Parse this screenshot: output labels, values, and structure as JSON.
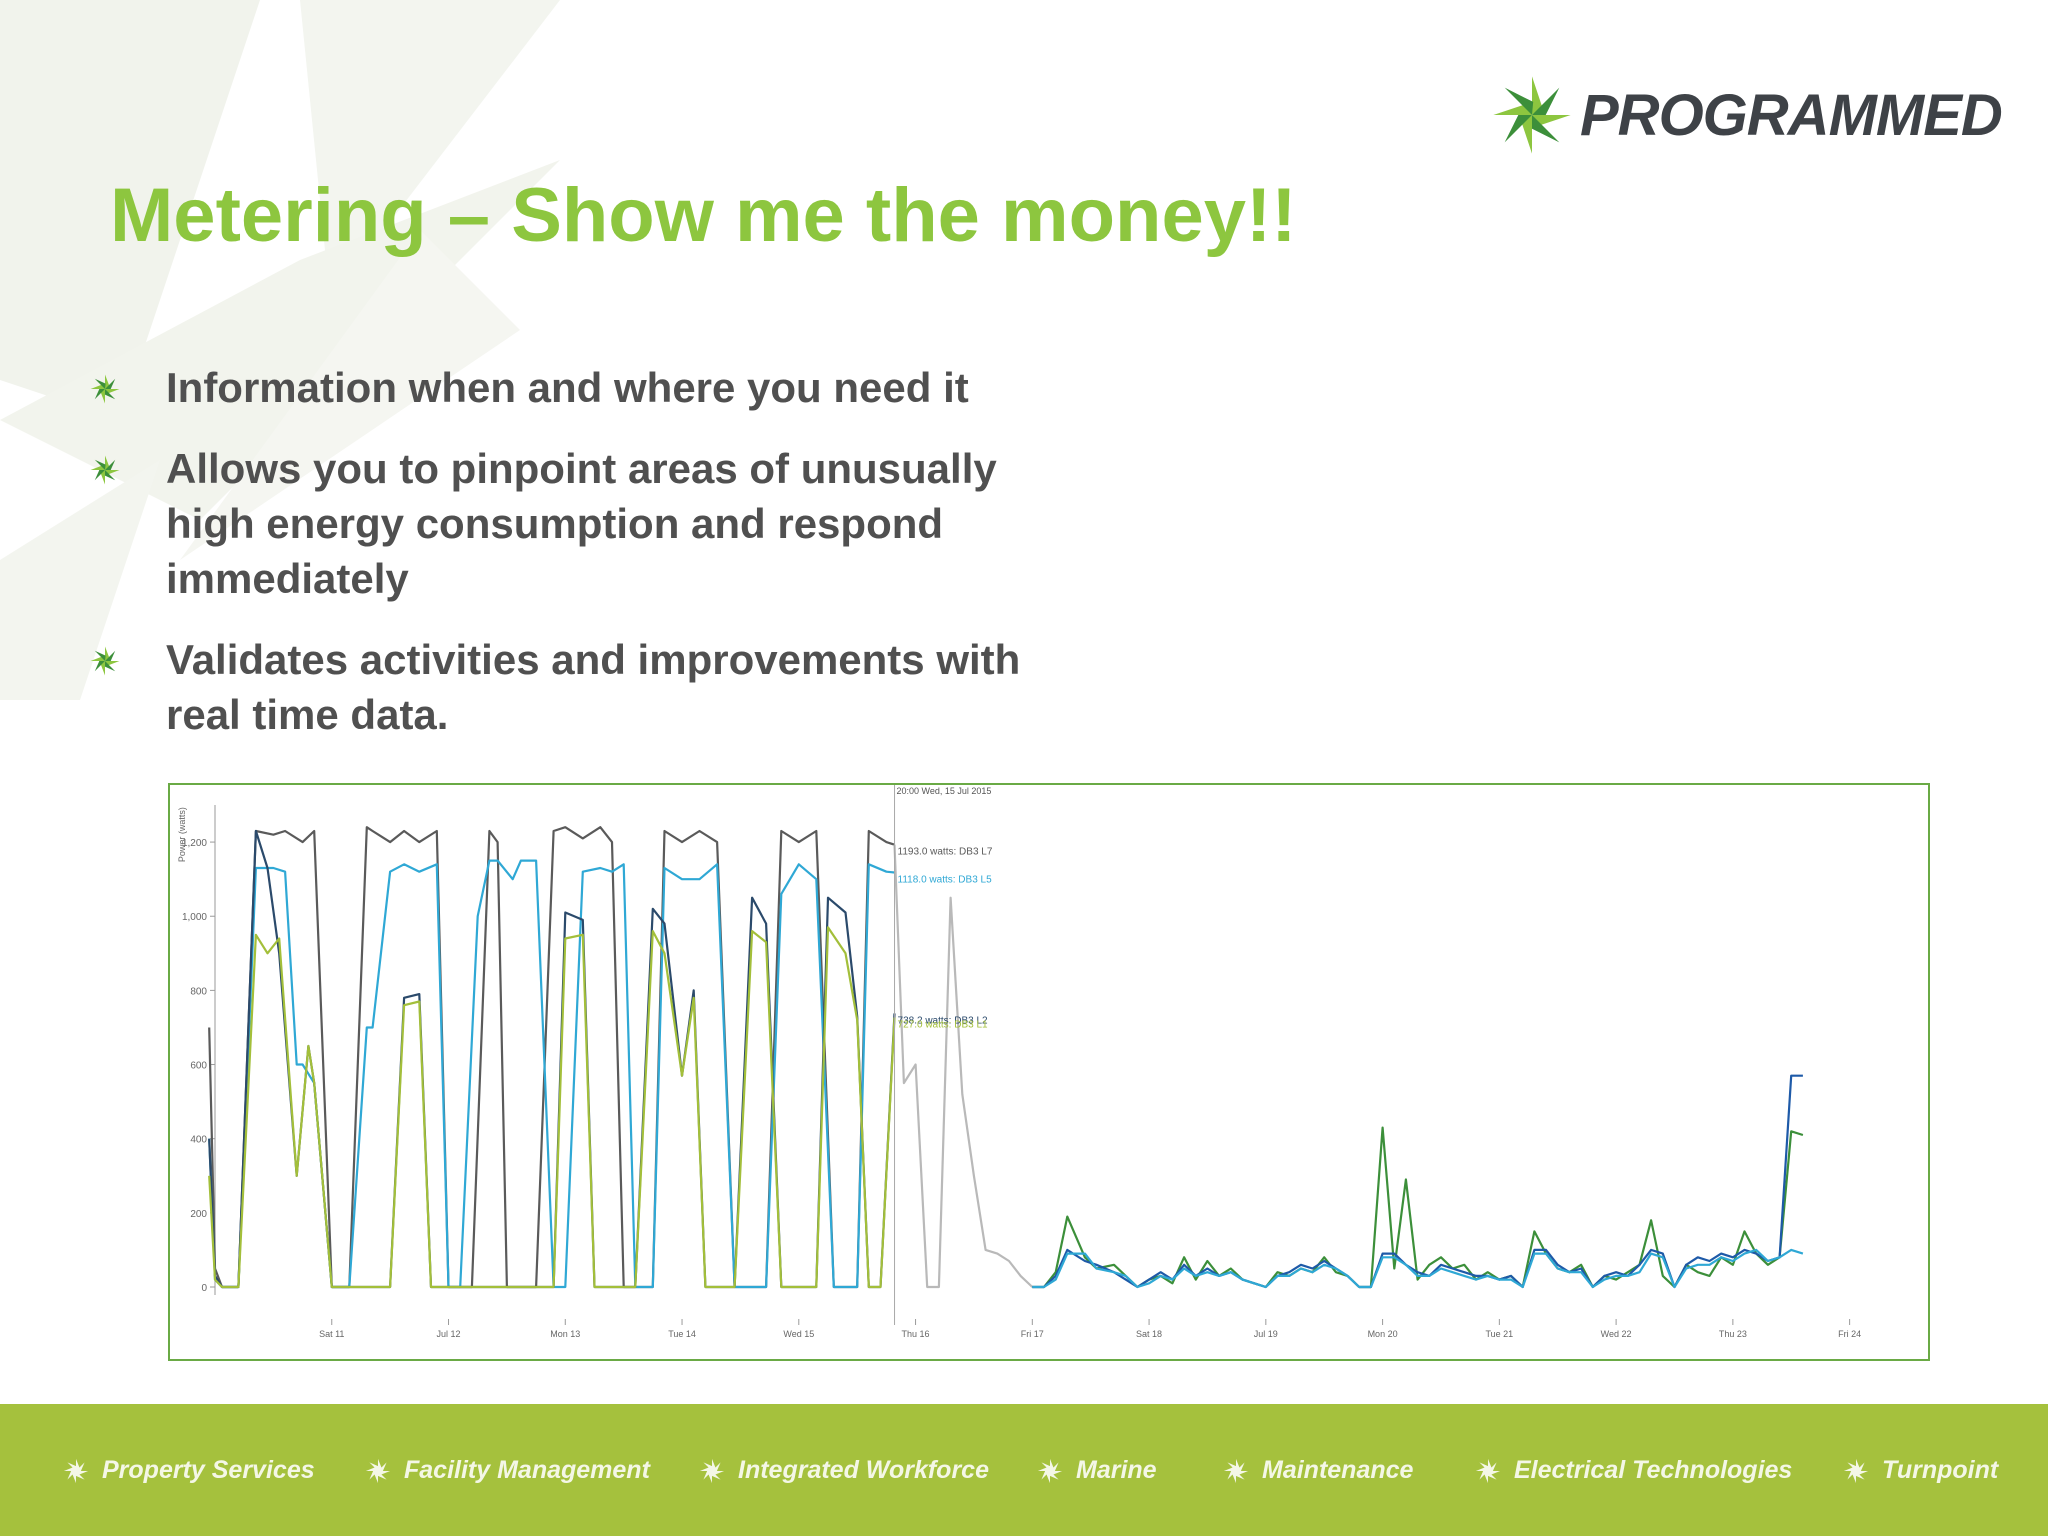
{
  "brand": {
    "name": "PROGRAMMED",
    "green": "#8dc63f",
    "dark_green": "#3c8f3a",
    "footer_green": "#a5c13d"
  },
  "slide": {
    "title": "Metering – Show me the money!!",
    "bullets": [
      "Information when and where you need it",
      "Allows you to pinpoint areas of unusually high energy consumption and respond immediately",
      "Validates activities and improvements with real time data."
    ]
  },
  "footer": {
    "items": [
      "Property Services",
      "Facility Management",
      "Integrated Workforce",
      "Marine",
      "Maintenance",
      "Electrical Technologies",
      "Turnpoint"
    ]
  },
  "chart_data": {
    "type": "line",
    "title": "",
    "xlabel": "",
    "ylabel": "Power (watts)",
    "ylim": [
      0,
      1300
    ],
    "y_ticks": [
      0,
      200,
      400,
      600,
      800,
      1000,
      1200
    ],
    "y_tick_labels": [
      "0",
      "200",
      "400",
      "600",
      "800",
      "1,000",
      "1,200"
    ],
    "xlim": [
      0,
      14.5
    ],
    "x_ticks": [
      1,
      2,
      3,
      4,
      5,
      6,
      7,
      8,
      9,
      10,
      11,
      12,
      13,
      14
    ],
    "x_tick_labels": [
      "Sat 11",
      "Jul 12",
      "Mon 13",
      "Tue 14",
      "Wed 15",
      "Thu 16",
      "Fri 17",
      "Sat 18",
      "Jul 19",
      "Mon 20",
      "Tue 21",
      "Wed 22",
      "Thu 23",
      "Fri 24"
    ],
    "grid": false,
    "tooltip": {
      "x": 5.82,
      "header": "20:00 Wed, 15 Jul 2015",
      "entries": [
        {
          "label": "1193.0 watts: DB3 L7",
          "color": "#5a5a5a",
          "y": 1193
        },
        {
          "label": "1118.0 watts: DB3 L5",
          "color": "#2fa8d5",
          "y": 1118
        },
        {
          "label": "738.2 watts: DB3 L2",
          "color": "#2b4a6b",
          "y": 738
        },
        {
          "label": "727.0 watts: DB3 L1",
          "color": "#a3bf3a",
          "y": 727
        }
      ]
    },
    "series": [
      {
        "color": "#5a5a5a",
        "x": [
          -0.05,
          0.0,
          0.06,
          0.13,
          0.2,
          0.35,
          0.5,
          0.6,
          0.75,
          0.85,
          1.0,
          1.08,
          1.15,
          1.3,
          1.35,
          1.5,
          1.62,
          1.75,
          1.9,
          2.0,
          2.1,
          2.2,
          2.35,
          2.42,
          2.5,
          2.62,
          2.75,
          2.9,
          3.0,
          3.15,
          3.3,
          3.4,
          3.5,
          3.6,
          3.75,
          3.85,
          4.0,
          4.15,
          4.3,
          4.45,
          4.6,
          4.72,
          4.85,
          5.0,
          5.15,
          5.3,
          5.5,
          5.6,
          5.75,
          5.82
        ],
        "y": [
          700,
          50,
          0,
          0,
          0,
          1230,
          1220,
          1230,
          1200,
          1230,
          0,
          0,
          0,
          1240,
          1230,
          1200,
          1230,
          1200,
          1230,
          0,
          0,
          0,
          1230,
          1200,
          0,
          0,
          0,
          1230,
          1240,
          1210,
          1240,
          1200,
          0,
          0,
          0,
          1230,
          1200,
          1230,
          1200,
          0,
          0,
          0,
          1230,
          1200,
          1230,
          0,
          0,
          1230,
          1200,
          1193
        ]
      },
      {
        "color": "#2fa8d5",
        "x": [
          -0.05,
          0.0,
          0.06,
          0.13,
          0.2,
          0.35,
          0.5,
          0.6,
          0.7,
          0.75,
          0.85,
          1.0,
          1.08,
          1.15,
          1.3,
          1.35,
          1.5,
          1.62,
          1.75,
          1.9,
          2.0,
          2.1,
          2.25,
          2.35,
          2.42,
          2.55,
          2.62,
          2.75,
          2.9,
          3.0,
          3.15,
          3.3,
          3.4,
          3.5,
          3.6,
          3.75,
          3.85,
          4.0,
          4.15,
          4.3,
          4.45,
          4.6,
          4.72,
          4.85,
          5.0,
          5.15,
          5.3,
          5.5,
          5.6,
          5.75,
          5.82
        ],
        "y": [
          400,
          20,
          0,
          0,
          0,
          1130,
          1130,
          1120,
          600,
          600,
          550,
          0,
          0,
          0,
          700,
          700,
          1120,
          1140,
          1120,
          1140,
          0,
          0,
          1000,
          1150,
          1150,
          1100,
          1150,
          1150,
          0,
          0,
          1120,
          1130,
          1120,
          1140,
          0,
          0,
          1130,
          1100,
          1100,
          1140,
          0,
          0,
          0,
          1060,
          1140,
          1100,
          0,
          0,
          1140,
          1120,
          1118
        ]
      },
      {
        "color": "#2b4a6b",
        "x": [
          -0.05,
          0.0,
          0.06,
          0.13,
          0.2,
          0.35,
          0.45,
          0.55,
          0.7,
          0.8,
          0.85,
          1.0,
          1.08,
          1.15,
          1.3,
          1.35,
          1.5,
          1.62,
          1.75,
          1.85,
          2.0,
          2.1,
          2.25,
          2.35,
          2.42,
          2.55,
          2.62,
          2.75,
          2.9,
          3.0,
          3.15,
          3.25,
          3.4,
          3.5,
          3.6,
          3.75,
          3.85,
          4.0,
          4.1,
          4.2,
          4.35,
          4.45,
          4.6,
          4.72,
          4.85,
          5.0,
          5.15,
          5.25,
          5.4,
          5.5,
          5.6,
          5.7,
          5.82
        ],
        "y": [
          400,
          30,
          0,
          0,
          0,
          1230,
          1130,
          900,
          300,
          650,
          550,
          0,
          0,
          0,
          0,
          0,
          0,
          780,
          790,
          0,
          0,
          0,
          0,
          0,
          0,
          0,
          0,
          0,
          0,
          1010,
          990,
          0,
          0,
          0,
          0,
          1020,
          980,
          570,
          800,
          0,
          0,
          0,
          1050,
          980,
          0,
          0,
          0,
          1050,
          1010,
          730,
          0,
          0,
          738
        ]
      },
      {
        "color": "#a3bf3a",
        "x": [
          -0.05,
          0.0,
          0.06,
          0.13,
          0.2,
          0.35,
          0.45,
          0.55,
          0.7,
          0.8,
          0.85,
          1.0,
          1.08,
          1.15,
          1.3,
          1.35,
          1.5,
          1.62,
          1.75,
          1.85,
          2.0,
          2.1,
          2.25,
          2.35,
          2.42,
          2.55,
          2.62,
          2.75,
          2.9,
          3.0,
          3.15,
          3.25,
          3.4,
          3.5,
          3.6,
          3.75,
          3.85,
          4.0,
          4.1,
          4.2,
          4.35,
          4.45,
          4.6,
          4.72,
          4.85,
          5.0,
          5.15,
          5.25,
          5.4,
          5.5,
          5.6,
          5.7,
          5.82
        ],
        "y": [
          300,
          20,
          0,
          0,
          0,
          950,
          900,
          940,
          300,
          650,
          550,
          0,
          0,
          0,
          0,
          0,
          0,
          760,
          770,
          0,
          0,
          0,
          0,
          0,
          0,
          0,
          0,
          0,
          0,
          940,
          950,
          0,
          0,
          0,
          0,
          960,
          900,
          570,
          780,
          0,
          0,
          0,
          960,
          930,
          0,
          0,
          0,
          970,
          900,
          720,
          0,
          0,
          727
        ]
      },
      {
        "color": "#b9b9b9",
        "x": [
          5.82,
          5.9,
          6.0,
          6.1,
          6.2,
          6.3,
          6.4,
          6.5,
          6.6,
          6.7,
          6.8,
          6.9,
          7.0
        ],
        "y": [
          1193,
          550,
          600,
          0,
          0,
          1050,
          520,
          300,
          100,
          90,
          70,
          30,
          0
        ]
      },
      {
        "color": "#3c8f3a",
        "x": [
          7.0,
          7.1,
          7.2,
          7.3,
          7.45,
          7.55,
          7.7,
          7.8,
          7.9,
          8.0,
          8.1,
          8.2,
          8.3,
          8.4,
          8.5,
          8.6,
          8.7,
          8.8,
          8.9,
          9.0,
          9.1,
          9.2,
          9.3,
          9.4,
          9.5,
          9.6,
          9.7,
          9.8,
          9.9,
          10.0,
          10.1,
          10.2,
          10.3,
          10.4,
          10.5,
          10.6,
          10.7,
          10.8,
          10.9,
          11.0,
          11.1,
          11.2,
          11.3,
          11.4,
          11.5,
          11.6,
          11.7,
          11.8,
          11.9,
          12.0,
          12.1,
          12.2,
          12.3,
          12.4,
          12.5,
          12.6,
          12.7,
          12.8,
          12.9,
          13.0,
          13.1,
          13.2,
          13.3,
          13.4,
          13.5,
          13.6
        ],
        "y": [
          0,
          0,
          40,
          190,
          80,
          50,
          60,
          30,
          0,
          20,
          30,
          10,
          80,
          20,
          70,
          30,
          50,
          20,
          10,
          0,
          40,
          30,
          50,
          40,
          80,
          40,
          30,
          0,
          0,
          430,
          50,
          290,
          20,
          60,
          80,
          50,
          60,
          20,
          40,
          20,
          30,
          0,
          150,
          90,
          50,
          40,
          60,
          0,
          30,
          20,
          40,
          60,
          180,
          30,
          0,
          60,
          40,
          30,
          80,
          60,
          150,
          90,
          60,
          80,
          420,
          410
        ]
      },
      {
        "color": "#1e5aa8",
        "x": [
          7.0,
          7.1,
          7.2,
          7.3,
          7.45,
          7.55,
          7.7,
          7.8,
          7.9,
          8.0,
          8.1,
          8.2,
          8.3,
          8.4,
          8.5,
          8.6,
          8.7,
          8.8,
          8.9,
          9.0,
          9.1,
          9.2,
          9.3,
          9.4,
          9.5,
          9.6,
          9.7,
          9.8,
          9.9,
          10.0,
          10.1,
          10.2,
          10.3,
          10.4,
          10.5,
          10.6,
          10.7,
          10.8,
          10.9,
          11.0,
          11.1,
          11.2,
          11.3,
          11.4,
          11.5,
          11.6,
          11.7,
          11.8,
          11.9,
          12.0,
          12.1,
          12.2,
          12.3,
          12.4,
          12.5,
          12.6,
          12.7,
          12.8,
          12.9,
          13.0,
          13.1,
          13.2,
          13.3,
          13.4,
          13.5,
          13.6
        ],
        "y": [
          0,
          0,
          30,
          100,
          70,
          60,
          40,
          20,
          0,
          20,
          40,
          20,
          60,
          30,
          50,
          30,
          40,
          20,
          10,
          0,
          30,
          40,
          60,
          50,
          70,
          50,
          30,
          0,
          0,
          90,
          90,
          60,
          40,
          30,
          60,
          50,
          40,
          30,
          30,
          20,
          30,
          0,
          100,
          100,
          60,
          40,
          50,
          0,
          30,
          40,
          30,
          60,
          100,
          90,
          0,
          60,
          80,
          70,
          90,
          80,
          100,
          90,
          70,
          80,
          570,
          570
        ]
      },
      {
        "color": "#2fa8d5",
        "x": [
          7.0,
          7.1,
          7.2,
          7.3,
          7.45,
          7.55,
          7.7,
          7.8,
          7.9,
          8.0,
          8.1,
          8.2,
          8.3,
          8.4,
          8.5,
          8.6,
          8.7,
          8.8,
          8.9,
          9.0,
          9.1,
          9.2,
          9.3,
          9.4,
          9.5,
          9.6,
          9.7,
          9.8,
          9.9,
          10.0,
          10.1,
          10.2,
          10.3,
          10.4,
          10.5,
          10.6,
          10.7,
          10.8,
          10.9,
          11.0,
          11.1,
          11.2,
          11.3,
          11.4,
          11.5,
          11.6,
          11.7,
          11.8,
          11.9,
          12.0,
          12.1,
          12.2,
          12.3,
          12.4,
          12.5,
          12.6,
          12.7,
          12.8,
          12.9,
          13.0,
          13.1,
          13.2,
          13.3,
          13.4,
          13.5,
          13.6
        ],
        "y": [
          0,
          0,
          20,
          90,
          90,
          50,
          40,
          30,
          0,
          10,
          30,
          20,
          50,
          30,
          40,
          30,
          40,
          20,
          10,
          0,
          30,
          30,
          50,
          40,
          60,
          50,
          30,
          0,
          0,
          80,
          80,
          60,
          30,
          30,
          50,
          40,
          30,
          20,
          30,
          20,
          20,
          0,
          90,
          90,
          50,
          40,
          40,
          0,
          20,
          30,
          30,
          40,
          90,
          80,
          0,
          50,
          60,
          60,
          80,
          70,
          90,
          100,
          70,
          80,
          100,
          90
        ]
      }
    ]
  }
}
